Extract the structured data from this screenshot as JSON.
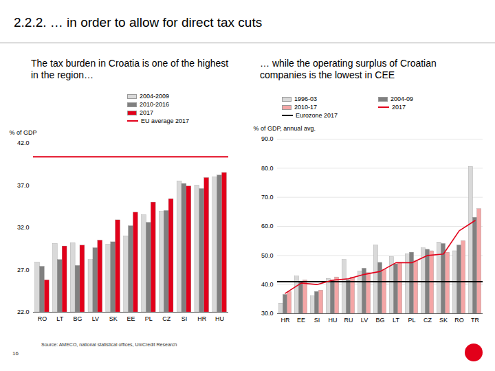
{
  "title": "2.2.2. … in order to allow for direct tax cuts",
  "source": "Source: AMECO, national statistical offices, UniCredit Research",
  "page": 16,
  "chart_data": [
    {
      "type": "bar",
      "title": "The tax burden in Croatia is one of the highest in the region…",
      "y_label": "% of GDP",
      "categories": [
        "RO",
        "LT",
        "BG",
        "LV",
        "SK",
        "EE",
        "PL",
        "CZ",
        "SI",
        "HR",
        "HU"
      ],
      "series": [
        {
          "name": "2004-2009",
          "color": "#d9d9d9",
          "values": [
            27.9,
            30.1,
            30.2,
            28.2,
            30.0,
            31.0,
            33.5,
            33.9,
            37.5,
            37.0,
            38.0
          ]
        },
        {
          "name": "2010-2016",
          "color": "#808080",
          "values": [
            27.4,
            28.2,
            27.5,
            29.6,
            30.3,
            32.2,
            32.6,
            34.0,
            37.2,
            36.6,
            38.2
          ]
        },
        {
          "name": "2017",
          "color": "#e2001a",
          "values": [
            25.8,
            29.8,
            29.9,
            30.5,
            32.9,
            33.8,
            35.0,
            35.4,
            36.9,
            37.9,
            38.5
          ]
        }
      ],
      "reference_lines": [
        {
          "name": "EU average 2017",
          "color": "#e2001a",
          "value": 40.4
        }
      ],
      "ylim": [
        22,
        42
      ],
      "yticks": [
        {
          "value": 22,
          "label": "22.0"
        },
        {
          "value": 27,
          "label": "27.0"
        },
        {
          "value": 32,
          "label": "32.0"
        },
        {
          "value": 37,
          "label": "37.0"
        },
        {
          "value": 42,
          "label": "42.0"
        }
      ],
      "grid": false
    },
    {
      "type": "bar",
      "title": "… while the operating surplus of Croatian companies is the lowest in CEE",
      "y_label": "% of GDP, annual avg.",
      "categories": [
        "HR",
        "EE",
        "SI",
        "HU",
        "RU",
        "LV",
        "BG",
        "LT",
        "PL",
        "CZ",
        "SK",
        "RO",
        "TR"
      ],
      "series": [
        {
          "name": "1996-03",
          "color": "#d9d9d9",
          "values": [
            33.5,
            42.8,
            36.0,
            42.0,
            48.5,
            44.5,
            53.5,
            49.5,
            50.5,
            52.5,
            54.5,
            51.5,
            80.5
          ]
        },
        {
          "name": "2004-09",
          "color": "#808080",
          "values": [
            36.5,
            41.0,
            37.5,
            41.5,
            41.5,
            45.5,
            47.5,
            47.0,
            51.0,
            52.0,
            54.0,
            53.5,
            63.0
          ]
        },
        {
          "name": "2010-17",
          "color": "#f4a6a6",
          "values": [
            37.5,
            41.5,
            38.0,
            42.5,
            42.5,
            44.0,
            45.0,
            47.5,
            48.0,
            51.5,
            51.0,
            55.0,
            66.0
          ]
        },
        {
          "name": "2017",
          "color": "#e2001a",
          "type": "line",
          "line_style": "solid",
          "values": [
            37.0,
            40.5,
            40.0,
            41.5,
            42.0,
            43.5,
            44.5,
            47.5,
            47.5,
            50.0,
            50.5,
            58.5,
            62.0
          ]
        }
      ],
      "reference_lines": [
        {
          "name": "Eurozone 2017",
          "color": "#000000",
          "value": 41.0
        }
      ],
      "ylim": [
        30,
        90
      ],
      "yticks": [
        {
          "value": 30,
          "label": "30.0"
        },
        {
          "value": 40,
          "label": "40.0"
        },
        {
          "value": 50,
          "label": "50.0"
        },
        {
          "value": 60,
          "label": "60.0"
        },
        {
          "value": 70,
          "label": "70.0"
        },
        {
          "value": 80,
          "label": "80.0"
        },
        {
          "value": 90,
          "label": "90.0"
        }
      ],
      "grid": true
    }
  ]
}
